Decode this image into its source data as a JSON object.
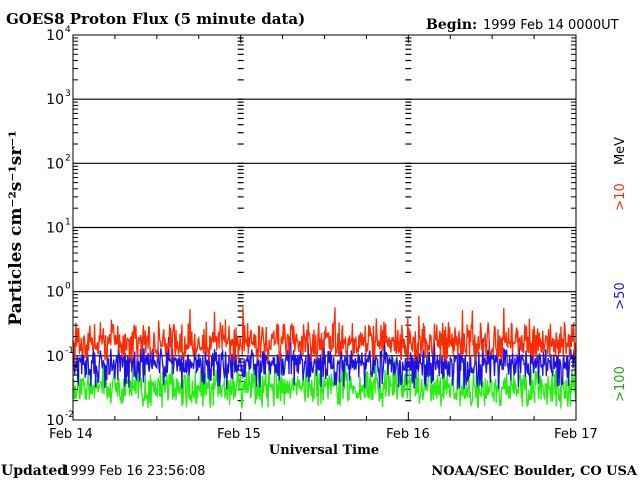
{
  "header": {
    "title": "GOES8 Proton Flux (5 minute data)",
    "begin_label": "Begin:",
    "begin_value": "1999 Feb 14 0000UT"
  },
  "footer": {
    "updated_label": "Updated",
    "updated_value": "1999 Feb 16 23:56:08",
    "credit": "NOAA/SEC Boulder, CO USA"
  },
  "legend": {
    "unit": "MeV",
    "thresholds": [
      {
        "label": ">10",
        "color": "#ff2a00"
      },
      {
        "label": ">50",
        "color": "#1e10e0"
      },
      {
        "label": ">100",
        "color": "#25ee10"
      }
    ]
  },
  "chart_data": {
    "type": "line",
    "title": "GOES8 Proton Flux (5 minute data)",
    "xlabel": "Universal Time",
    "ylabel": "Particles cm⁻²s⁻¹sr⁻¹",
    "yscale": "log",
    "ylim": [
      0.01,
      10000
    ],
    "y_ticks": [
      {
        "base": "10",
        "exp": "-2"
      },
      {
        "base": "10",
        "exp": "-1"
      },
      {
        "base": "10",
        "exp": "0"
      },
      {
        "base": "10",
        "exp": "1"
      },
      {
        "base": "10",
        "exp": "2"
      },
      {
        "base": "10",
        "exp": "3"
      },
      {
        "base": "10",
        "exp": "4"
      }
    ],
    "x_ticks": [
      "Feb 14",
      "Feb 15",
      "Feb 16",
      "Feb 17"
    ],
    "xlim": [
      "1999-02-14 00:00",
      "1999-02-17 00:00"
    ],
    "grid": true,
    "series": [
      {
        "name": ">10 MeV",
        "color": "#ff2a00",
        "typical": 0.15,
        "range": [
          0.08,
          0.6
        ]
      },
      {
        "name": ">50 MeV",
        "color": "#1e10e0",
        "typical": 0.07,
        "range": [
          0.03,
          0.2
        ]
      },
      {
        "name": ">100 MeV",
        "color": "#25ee10",
        "typical": 0.03,
        "range": [
          0.015,
          0.1
        ]
      }
    ]
  }
}
